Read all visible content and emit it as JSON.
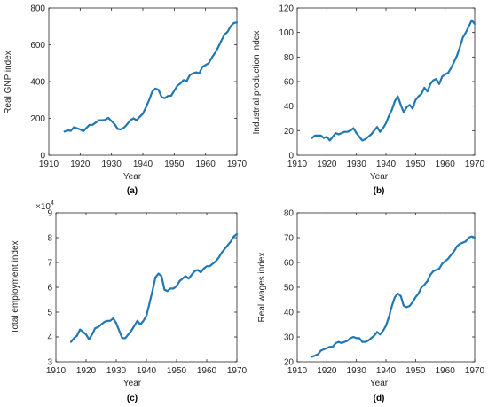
{
  "colors": {
    "line": "#1f77b4",
    "axis": "#262626",
    "text": "#262626"
  },
  "chart_data": [
    {
      "type": "line",
      "panel_label": "(a)",
      "xlabel": "Year",
      "ylabel": "Real GNP index",
      "xlim": [
        1910,
        1970
      ],
      "ylim": [
        0,
        800
      ],
      "xticks": [
        "1910",
        "1920",
        "1930",
        "1940",
        "1950",
        "1960",
        "1970"
      ],
      "yticks": [
        "0",
        "200",
        "400",
        "600",
        "800"
      ],
      "x": [
        1915,
        1916,
        1917,
        1918,
        1919,
        1920,
        1921,
        1922,
        1923,
        1924,
        1925,
        1926,
        1927,
        1928,
        1929,
        1930,
        1931,
        1932,
        1933,
        1934,
        1935,
        1936,
        1937,
        1938,
        1939,
        1940,
        1941,
        1942,
        1943,
        1944,
        1945,
        1946,
        1947,
        1948,
        1949,
        1950,
        1951,
        1952,
        1953,
        1954,
        1955,
        1956,
        1957,
        1958,
        1959,
        1960,
        1961,
        1962,
        1963,
        1964,
        1965,
        1966,
        1967,
        1968,
        1969,
        1970
      ],
      "series": [
        {
          "values": [
            128,
            135,
            132,
            152,
            146,
            140,
            130,
            148,
            165,
            165,
            178,
            190,
            190,
            192,
            203,
            185,
            168,
            142,
            140,
            150,
            168,
            190,
            200,
            190,
            208,
            225,
            260,
            300,
            345,
            362,
            355,
            315,
            310,
            322,
            323,
            350,
            378,
            390,
            408,
            404,
            435,
            445,
            450,
            445,
            480,
            490,
            500,
            530,
            555,
            585,
            620,
            655,
            670,
            700,
            718,
            722
          ]
        }
      ],
      "grid": false
    },
    {
      "type": "line",
      "panel_label": "(b)",
      "xlabel": "Year",
      "ylabel": "Industrial production index",
      "xlim": [
        1910,
        1970
      ],
      "ylim": [
        0,
        120
      ],
      "xticks": [
        "1910",
        "1920",
        "1930",
        "1940",
        "1950",
        "1960",
        "1970"
      ],
      "yticks": [
        "0",
        "20",
        "40",
        "60",
        "80",
        "100",
        "120"
      ],
      "x": [
        1915,
        1916,
        1917,
        1918,
        1919,
        1920,
        1921,
        1922,
        1923,
        1924,
        1925,
        1926,
        1927,
        1928,
        1929,
        1930,
        1931,
        1932,
        1933,
        1934,
        1935,
        1936,
        1937,
        1938,
        1939,
        1940,
        1941,
        1942,
        1943,
        1944,
        1945,
        1946,
        1947,
        1948,
        1949,
        1950,
        1951,
        1952,
        1953,
        1954,
        1955,
        1956,
        1957,
        1958,
        1959,
        1960,
        1961,
        1962,
        1963,
        1964,
        1965,
        1966,
        1967,
        1968,
        1969,
        1970
      ],
      "series": [
        {
          "values": [
            14,
            16,
            16,
            16,
            14,
            15,
            12,
            15,
            18,
            17,
            18,
            19,
            19,
            20,
            22,
            18,
            15,
            12,
            13,
            15,
            17,
            20,
            23,
            19,
            22,
            26,
            32,
            37,
            44,
            48,
            41,
            35,
            39,
            41,
            38,
            45,
            48,
            50,
            55,
            52,
            58,
            61,
            62,
            58,
            64,
            66,
            67,
            71,
            76,
            81,
            88,
            96,
            100,
            105,
            110,
            107
          ]
        }
      ],
      "grid": false
    },
    {
      "type": "line",
      "panel_label": "(c)",
      "xlabel": "Year",
      "ylabel": "Total employment index",
      "y_exponent": "×10",
      "y_exponent_power": "4",
      "xlim": [
        1910,
        1970
      ],
      "ylim": [
        30000,
        90000
      ],
      "xticks": [
        "1910",
        "1920",
        "1930",
        "1940",
        "1950",
        "1960",
        "1970"
      ],
      "yticks": [
        "3",
        "4",
        "5",
        "6",
        "7",
        "8",
        "9"
      ],
      "x": [
        1915,
        1916,
        1917,
        1918,
        1919,
        1920,
        1921,
        1922,
        1923,
        1924,
        1925,
        1926,
        1927,
        1928,
        1929,
        1930,
        1931,
        1932,
        1933,
        1934,
        1935,
        1936,
        1937,
        1938,
        1939,
        1940,
        1941,
        1942,
        1943,
        1944,
        1945,
        1946,
        1947,
        1948,
        1949,
        1950,
        1951,
        1952,
        1953,
        1954,
        1955,
        1956,
        1957,
        1958,
        1959,
        1960,
        1961,
        1962,
        1963,
        1964,
        1965,
        1966,
        1967,
        1968,
        1969,
        1970
      ],
      "series": [
        {
          "values": [
            38000,
            39500,
            40500,
            43000,
            42000,
            41000,
            39000,
            41000,
            43500,
            44000,
            45000,
            46000,
            46500,
            46500,
            47500,
            45500,
            42500,
            39500,
            39500,
            41000,
            42500,
            44500,
            46500,
            45000,
            46500,
            48500,
            53500,
            58500,
            64000,
            65500,
            64500,
            59000,
            58500,
            59500,
            59500,
            60500,
            62500,
            63500,
            64500,
            63500,
            65000,
            66500,
            67000,
            66000,
            67500,
            68500,
            68500,
            69500,
            70500,
            72000,
            74000,
            75500,
            77000,
            78500,
            80500,
            81500
          ]
        }
      ],
      "grid": false
    },
    {
      "type": "line",
      "panel_label": "(d)",
      "xlabel": "Year",
      "ylabel": "Real wages index",
      "xlim": [
        1910,
        1970
      ],
      "ylim": [
        20,
        80
      ],
      "xticks": [
        "1910",
        "1920",
        "1930",
        "1940",
        "1950",
        "1960",
        "1970"
      ],
      "yticks": [
        "20",
        "30",
        "40",
        "50",
        "60",
        "70",
        "80"
      ],
      "x": [
        1915,
        1916,
        1917,
        1918,
        1919,
        1920,
        1921,
        1922,
        1923,
        1924,
        1925,
        1926,
        1927,
        1928,
        1929,
        1930,
        1931,
        1932,
        1933,
        1934,
        1935,
        1936,
        1937,
        1938,
        1939,
        1940,
        1941,
        1942,
        1943,
        1944,
        1945,
        1946,
        1947,
        1948,
        1949,
        1950,
        1951,
        1952,
        1953,
        1954,
        1955,
        1956,
        1957,
        1958,
        1959,
        1960,
        1961,
        1962,
        1963,
        1964,
        1965,
        1966,
        1967,
        1968,
        1969,
        1970
      ],
      "series": [
        {
          "values": [
            22,
            22.5,
            23,
            24.5,
            25,
            25.5,
            26,
            26,
            27.5,
            28,
            27.5,
            28,
            28.5,
            29.5,
            30,
            29.5,
            29.5,
            28,
            28,
            28.5,
            29.5,
            30.5,
            32,
            31,
            32.5,
            34.5,
            38,
            42.5,
            46,
            47.5,
            46.5,
            42.5,
            42,
            42.5,
            44,
            46,
            47.5,
            50,
            51,
            52.5,
            55,
            56.5,
            57,
            57.5,
            59.5,
            60.5,
            61.5,
            63,
            64.5,
            66.5,
            67.5,
            68,
            68.5,
            70,
            70.5,
            70
          ]
        }
      ],
      "grid": false
    }
  ]
}
